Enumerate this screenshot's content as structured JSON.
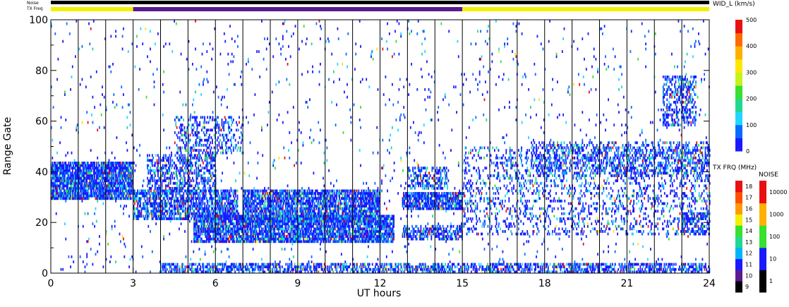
{
  "chart_data": {
    "type": "heatmap",
    "xlabel": "UT hours",
    "ylabel": "Range Gate",
    "x_ticks": [
      0,
      3,
      6,
      9,
      12,
      15,
      18,
      21,
      24
    ],
    "y_ticks": [
      0,
      20,
      40,
      60,
      80,
      100
    ],
    "xlim": [
      0,
      24
    ],
    "ylim": [
      0,
      100
    ],
    "grid": "vertical lines every hour",
    "noise_label": "Noise",
    "txfreq_label": "TX Freq",
    "noise_bar": {
      "value_color": "#000000"
    },
    "txfreq_bar": {
      "segments": [
        {
          "start": 0,
          "end": 3,
          "color": "#f4f000"
        },
        {
          "start": 3,
          "end": 15,
          "color": "#5a1b8c"
        },
        {
          "start": 15,
          "end": 24,
          "color": "#f4f000"
        }
      ]
    },
    "colorbar_main": {
      "title": "WID_L (km/s)",
      "range": [
        0,
        500
      ],
      "ticks": [
        0,
        100,
        200,
        300,
        400,
        500
      ],
      "colors": [
        "#1a1aff",
        "#0a6cff",
        "#22d6ff",
        "#22d890",
        "#38e030",
        "#c8f21a",
        "#ffe600",
        "#ffb000",
        "#ff6a00",
        "#e81010"
      ]
    },
    "colorbar_txfreq": {
      "title": "TX FRQ (MHz)",
      "ticks": [
        9,
        10,
        11,
        12,
        13,
        14,
        15,
        16,
        17,
        18
      ],
      "colors": [
        "#000000",
        "#5a1b8c",
        "#1a1aff",
        "#00b4ff",
        "#22d890",
        "#38e030",
        "#f4f000",
        "#ff9a00",
        "#ff5000",
        "#e81010"
      ]
    },
    "colorbar_noise": {
      "title": "NOISE",
      "ticks": [
        "1",
        "10",
        "100",
        "1000",
        "10000"
      ],
      "colors": [
        "#000000",
        "#1a1aff",
        "#38e030",
        "#ffb000",
        "#e81010"
      ]
    },
    "scatter_bands": [
      {
        "t0": 0,
        "t1": 3,
        "g0": 29,
        "g1": 44,
        "density": 0.85
      },
      {
        "t0": 3,
        "t1": 6.8,
        "g0": 21,
        "g1": 33,
        "density": 0.65
      },
      {
        "t0": 3.5,
        "t1": 6,
        "g0": 32,
        "g1": 47,
        "density": 0.45
      },
      {
        "t0": 4.5,
        "t1": 7,
        "g0": 47,
        "g1": 62,
        "density": 0.28
      },
      {
        "t0": 5.2,
        "t1": 12.5,
        "g0": 12,
        "g1": 23,
        "density": 0.8
      },
      {
        "t0": 7,
        "t1": 12,
        "g0": 20,
        "g1": 33,
        "density": 0.75
      },
      {
        "t0": 12.8,
        "t1": 15,
        "g0": 25,
        "g1": 32,
        "density": 0.8
      },
      {
        "t0": 12.8,
        "t1": 15,
        "g0": 13,
        "g1": 19,
        "density": 0.5
      },
      {
        "t0": 13,
        "t1": 14.5,
        "g0": 33,
        "g1": 42,
        "density": 0.4
      },
      {
        "t0": 15,
        "t1": 24,
        "g0": 15,
        "g1": 50,
        "density": 0.18
      },
      {
        "t0": 17.5,
        "t1": 24,
        "g0": 38,
        "g1": 52,
        "density": 0.3
      },
      {
        "t0": 22.3,
        "t1": 23.5,
        "g0": 58,
        "g1": 78,
        "density": 0.4
      },
      {
        "t0": 23,
        "t1": 24,
        "g0": 15,
        "g1": 24,
        "density": 0.45
      },
      {
        "t0": 4,
        "t1": 24,
        "g0": 0,
        "g1": 4,
        "density": 0.55
      },
      {
        "t0": 0,
        "t1": 24,
        "g0": 0,
        "g1": 100,
        "density": 0.02
      }
    ]
  }
}
